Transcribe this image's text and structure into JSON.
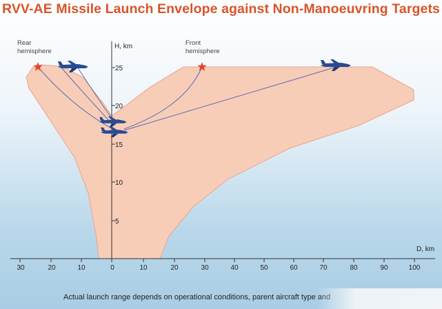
{
  "title": "RVV-AE Missile Launch Envelope against Non-Manoeuvring Targets",
  "labels": {
    "rear_line1": "Rear",
    "rear_line2": "hemisphere",
    "front_line1": "Front",
    "front_line2": "hemisphere",
    "y_axis": "H, km",
    "x_axis": "D, km"
  },
  "y_ticks": [
    "25",
    "20",
    "15",
    "10",
    "5"
  ],
  "x_ticks": [
    "30",
    "20",
    "10",
    "0",
    "10",
    "20",
    "30",
    "40",
    "50",
    "60",
    "70",
    "80",
    "90",
    "100"
  ],
  "caption": "Actual launch range depends on operational conditions, parent aircraft type and",
  "colors": {
    "title": "#d9532a",
    "envelope_fill": "#f7cdb8",
    "envelope_stroke": "#e8a58c",
    "trajectory": "#5a6ab0",
    "aircraft": "#2a4a92",
    "star": "#e8432c"
  },
  "icons": {
    "aircraft": "jet-aircraft-icon",
    "launch_point": "red-star-icon"
  }
}
